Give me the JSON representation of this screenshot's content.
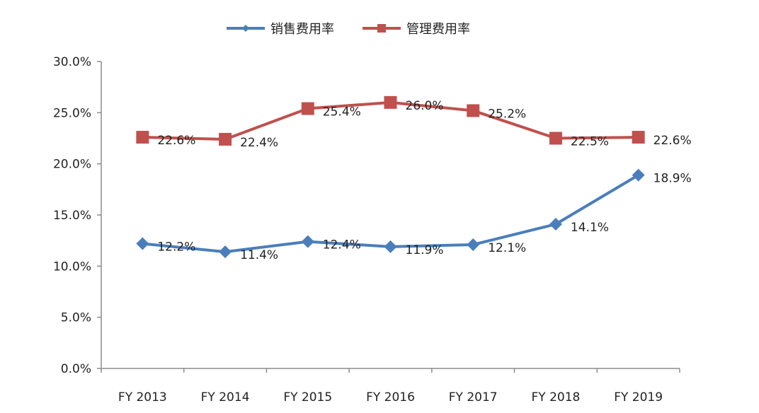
{
  "chart_data": {
    "type": "line",
    "title": "",
    "xlabel": "",
    "ylabel": "",
    "categories": [
      "FY 2013",
      "FY 2014",
      "FY 2015",
      "FY 2016",
      "FY 2017",
      "FY 2018",
      "FY 2019"
    ],
    "ylim": [
      0,
      30
    ],
    "y_ticks": [
      "0.0%",
      "5.0%",
      "10.0%",
      "15.0%",
      "20.0%",
      "25.0%",
      "30.0%"
    ],
    "grid": false,
    "legend_position": "top-center",
    "series": [
      {
        "name": "销售费用率",
        "color": "#4a7ebb",
        "marker": "diamond",
        "values": [
          12.2,
          11.4,
          12.4,
          11.9,
          12.1,
          14.1,
          18.9
        ],
        "labels": [
          "12.2%",
          "11.4%",
          "12.4%",
          "11.9%",
          "12.1%",
          "14.1%",
          "18.9%"
        ]
      },
      {
        "name": "管理费用率",
        "color": "#c0504d",
        "marker": "square",
        "values": [
          22.6,
          22.4,
          25.4,
          26.0,
          25.2,
          22.5,
          22.6
        ],
        "labels": [
          "22.6%",
          "22.4%",
          "25.4%",
          "26.0%",
          "25.2%",
          "22.5%",
          "22.6%"
        ]
      }
    ]
  }
}
